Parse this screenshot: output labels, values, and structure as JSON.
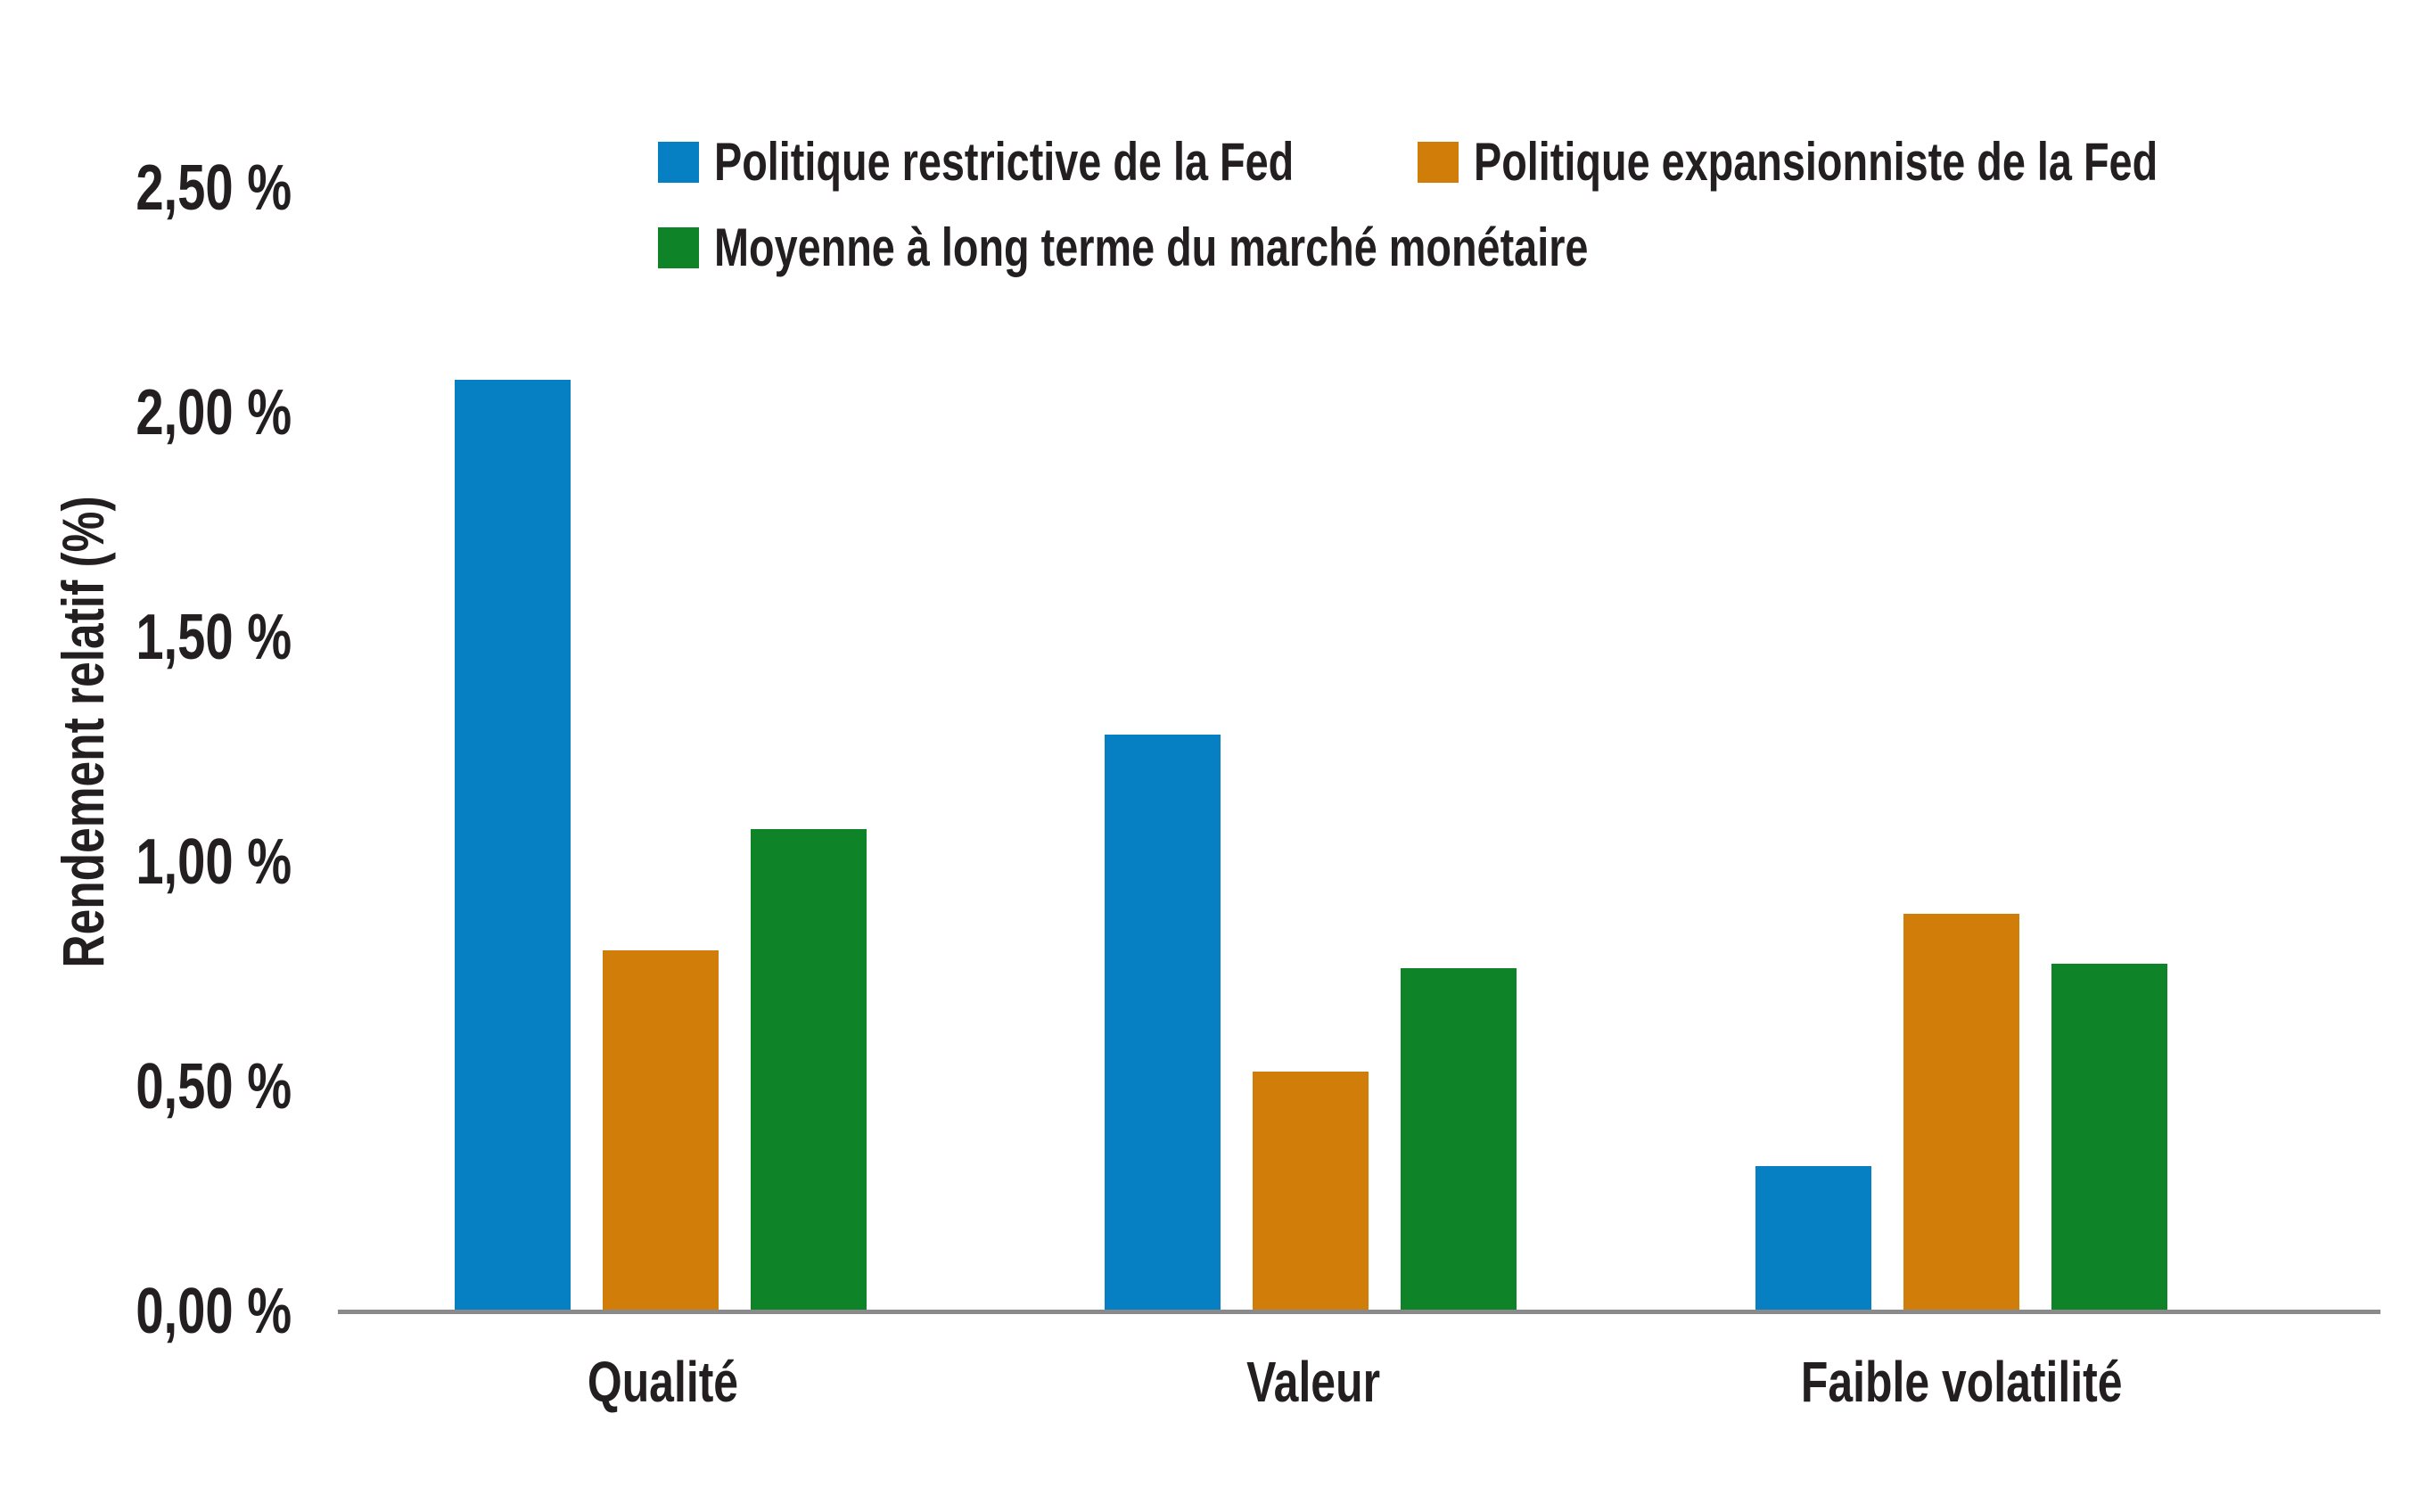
{
  "chart_data": {
    "type": "bar",
    "title": "",
    "categories": [
      "Qualité",
      "Valeur",
      "Faible volatilité"
    ],
    "series": [
      {
        "name": "Politique restrictive de la Fed",
        "color": "#0680C2",
        "values": [
          2.07,
          1.28,
          0.32
        ]
      },
      {
        "name": "Politique expansionniste de la Fed",
        "color": "#D07D0A",
        "values": [
          0.8,
          0.53,
          0.88
        ]
      },
      {
        "name": "Moyenne à long terme du marché monétaire",
        "color": "#0E8327",
        "values": [
          1.07,
          0.76,
          0.77
        ]
      }
    ],
    "xlabel": "",
    "ylabel": "Rendement relatif (%)",
    "ylim": [
      0,
      2.5
    ],
    "ytick_interval": 0.5,
    "yticks_top_to_bottom": [
      "2,50 %",
      "2,00 %",
      "1,50 %",
      "1,00 %",
      "0,50 %",
      "0,00 %"
    ],
    "grid": false,
    "legend_position": "top"
  },
  "colors": {
    "background": "#FFFFFF",
    "text": "#231F20",
    "axis_line": "#8A8A8D"
  }
}
